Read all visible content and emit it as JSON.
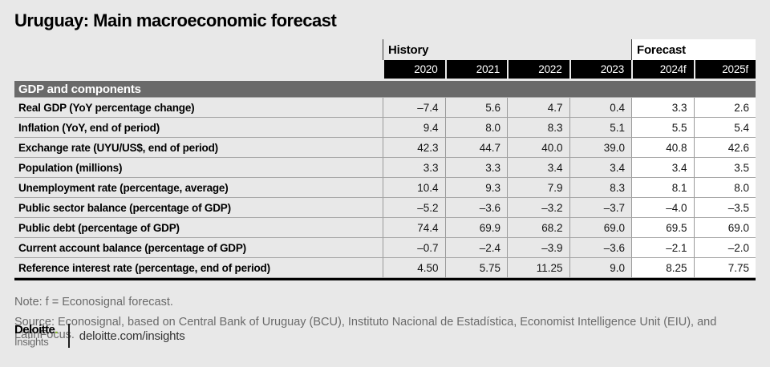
{
  "title": "Uruguay: Main macroeconomic forecast",
  "table": {
    "history_label": "History",
    "forecast_label": "Forecast",
    "section_label": "GDP and components",
    "history_span": 4,
    "years": [
      "2020",
      "2021",
      "2022",
      "2023",
      "2024f",
      "2025f"
    ],
    "rows": [
      {
        "label": "Real GDP (YoY percentage change)",
        "values": [
          "–7.4",
          "5.6",
          "4.7",
          "0.4",
          "3.3",
          "2.6"
        ]
      },
      {
        "label": "Inflation (YoY, end of period)",
        "values": [
          "9.4",
          "8.0",
          "8.3",
          "5.1",
          "5.5",
          "5.4"
        ]
      },
      {
        "label": "Exchange rate (UYU/US$, end of period)",
        "values": [
          "42.3",
          "44.7",
          "40.0",
          "39.0",
          "40.8",
          "42.6"
        ]
      },
      {
        "label": "Population (millions)",
        "values": [
          "3.3",
          "3.3",
          "3.4",
          "3.4",
          "3.4",
          "3.5"
        ]
      },
      {
        "label": "Unemployment rate (percentage, average)",
        "values": [
          "10.4",
          "9.3",
          "7.9",
          "8.3",
          "8.1",
          "8.0"
        ]
      },
      {
        "label": "Public sector balance (percentage of GDP)",
        "values": [
          "–5.2",
          "–3.6",
          "–3.2",
          "–3.7",
          "–4.0",
          "–3.5"
        ]
      },
      {
        "label": "Public debt (percentage of GDP)",
        "values": [
          "74.4",
          "69.9",
          "68.2",
          "69.0",
          "69.5",
          "69.0"
        ]
      },
      {
        "label": "Current account balance (percentage of GDP)",
        "values": [
          "–0.7",
          "–2.4",
          "–3.9",
          "–3.6",
          "–2.1",
          "–2.0"
        ]
      },
      {
        "label": "Reference interest rate (percentage, end of period)",
        "values": [
          "4.50",
          "5.75",
          "11.25",
          "9.0",
          "8.25",
          "7.75"
        ]
      }
    ]
  },
  "note": "Note: f = Econosignal forecast.",
  "source": "Source: Econosignal, based on Central Bank of Uruguay (BCU), Instituto Nacional de Estadística, Economist Intelligence Unit (EIU), and LatinFocus.",
  "footer": {
    "brand": "Deloitte",
    "brand_dot": ".",
    "brand_sub": "Insights",
    "url": "deloitte.com/insights"
  },
  "colors": {
    "page_bg": "#e8e8e8",
    "section_bar": "#6a6a6a",
    "year_bar": "#000000",
    "forecast_bg": "#ffffff",
    "green_accent": "#86bc25",
    "muted_text": "#6a6a6a"
  },
  "chart_data": {
    "type": "table",
    "title": "Uruguay: Main macroeconomic forecast",
    "column_groups": [
      {
        "label": "History",
        "span": 4
      },
      {
        "label": "Forecast",
        "span": 2
      }
    ],
    "columns": [
      "2020",
      "2021",
      "2022",
      "2023",
      "2024f",
      "2025f"
    ],
    "section": "GDP and components",
    "rows": [
      {
        "label": "Real GDP (YoY percentage change)",
        "values": [
          -7.4,
          5.6,
          4.7,
          0.4,
          3.3,
          2.6
        ]
      },
      {
        "label": "Inflation (YoY, end of period)",
        "values": [
          9.4,
          8.0,
          8.3,
          5.1,
          5.5,
          5.4
        ]
      },
      {
        "label": "Exchange rate (UYU/US$, end of period)",
        "values": [
          42.3,
          44.7,
          40.0,
          39.0,
          40.8,
          42.6
        ]
      },
      {
        "label": "Population (millions)",
        "values": [
          3.3,
          3.3,
          3.4,
          3.4,
          3.4,
          3.5
        ]
      },
      {
        "label": "Unemployment rate (percentage, average)",
        "values": [
          10.4,
          9.3,
          7.9,
          8.3,
          8.1,
          8.0
        ]
      },
      {
        "label": "Public sector balance (percentage of GDP)",
        "values": [
          -5.2,
          -3.6,
          -3.2,
          -3.7,
          -4.0,
          -3.5
        ]
      },
      {
        "label": "Public debt (percentage of GDP)",
        "values": [
          74.4,
          69.9,
          68.2,
          69.0,
          69.5,
          69.0
        ]
      },
      {
        "label": "Current account balance (percentage of GDP)",
        "values": [
          -0.7,
          -2.4,
          -3.9,
          -3.6,
          -2.1,
          -2.0
        ]
      },
      {
        "label": "Reference interest rate (percentage, end of period)",
        "values": [
          4.5,
          5.75,
          11.25,
          9.0,
          8.25,
          7.75
        ]
      }
    ],
    "note": "f = Econosignal forecast"
  }
}
